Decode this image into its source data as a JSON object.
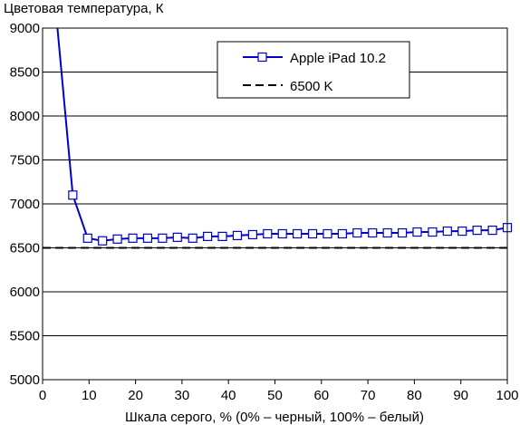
{
  "chart_data": {
    "type": "line",
    "title": "Цветовая температура, К",
    "xlabel": "Шкала серого, % (0% – черный, 100% – белый)",
    "ylabel": "",
    "xlim": [
      0,
      100
    ],
    "ylim": [
      5000,
      9000
    ],
    "x_ticks": [
      0,
      10,
      20,
      30,
      40,
      50,
      60,
      70,
      80,
      90,
      100
    ],
    "y_ticks": [
      5000,
      5500,
      6000,
      6500,
      7000,
      7500,
      8000,
      8500,
      9000
    ],
    "x_tick_labels": [
      "0",
      "10",
      "20",
      "30",
      "40",
      "50",
      "60",
      "70",
      "80",
      "90",
      "100"
    ],
    "y_tick_labels": [
      "5000",
      "5500",
      "6000",
      "6500",
      "7000",
      "7500",
      "8000",
      "8500",
      "9000"
    ],
    "grid": "horizontal",
    "legend_position": "top-right",
    "series": [
      {
        "name": "Apple iPad 10.2",
        "color": "#0000cc",
        "marker": "square",
        "line_start": {
          "x": 3.2,
          "y": 9000
        },
        "points": [
          {
            "x": 6.5,
            "y": 7100
          },
          {
            "x": 9.7,
            "y": 6610
          },
          {
            "x": 12.9,
            "y": 6580
          },
          {
            "x": 16.1,
            "y": 6600
          },
          {
            "x": 19.4,
            "y": 6610
          },
          {
            "x": 22.6,
            "y": 6610
          },
          {
            "x": 25.8,
            "y": 6610
          },
          {
            "x": 29.0,
            "y": 6620
          },
          {
            "x": 32.3,
            "y": 6610
          },
          {
            "x": 35.5,
            "y": 6630
          },
          {
            "x": 38.7,
            "y": 6630
          },
          {
            "x": 41.9,
            "y": 6640
          },
          {
            "x": 45.2,
            "y": 6650
          },
          {
            "x": 48.4,
            "y": 6660
          },
          {
            "x": 51.6,
            "y": 6660
          },
          {
            "x": 54.8,
            "y": 6660
          },
          {
            "x": 58.1,
            "y": 6660
          },
          {
            "x": 61.3,
            "y": 6660
          },
          {
            "x": 64.5,
            "y": 6660
          },
          {
            "x": 67.7,
            "y": 6670
          },
          {
            "x": 71.0,
            "y": 6670
          },
          {
            "x": 74.2,
            "y": 6670
          },
          {
            "x": 77.4,
            "y": 6670
          },
          {
            "x": 80.6,
            "y": 6680
          },
          {
            "x": 83.9,
            "y": 6680
          },
          {
            "x": 87.1,
            "y": 6690
          },
          {
            "x": 90.3,
            "y": 6690
          },
          {
            "x": 93.5,
            "y": 6700
          },
          {
            "x": 96.8,
            "y": 6700
          },
          {
            "x": 100,
            "y": 6730
          }
        ]
      },
      {
        "name": "6500 K",
        "color": "#000000",
        "style": "dashed",
        "points": [
          {
            "x": 0,
            "y": 6500
          },
          {
            "x": 100,
            "y": 6500
          }
        ]
      }
    ]
  }
}
